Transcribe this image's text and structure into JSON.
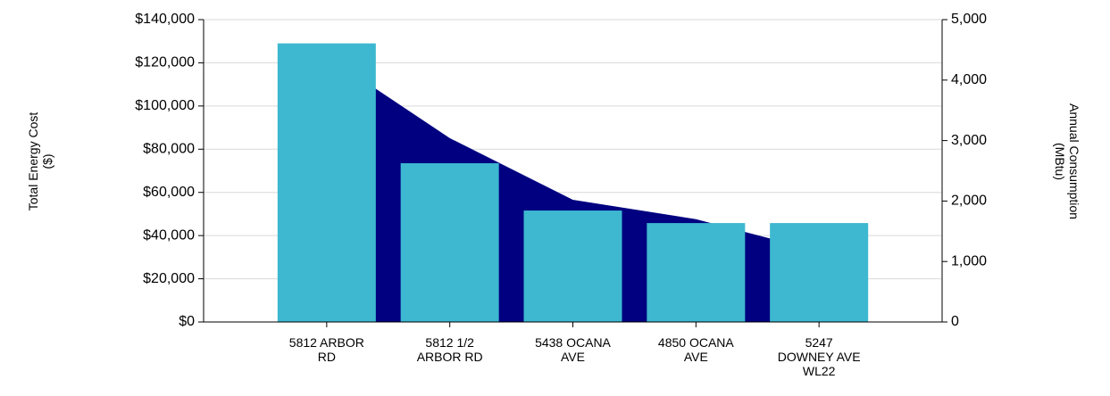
{
  "chart_data": {
    "type": "bar",
    "categories": [
      "5812 ARBOR RD",
      "5812 1/2 ARBOR RD",
      "5438 OCANA AVE",
      "4850 OCANA AVE",
      "5247 DOWNEY AVE WL22"
    ],
    "y_label": "Total Energy Cost ($)",
    "y2_label": "Annual Consumption (MBtu)",
    "series": [
      {
        "name": "Total Energy Cost",
        "type": "bar",
        "color": "#3db8d0",
        "values": [
          129000,
          73500,
          51600,
          45800,
          45800
        ]
      },
      {
        "name": "Annual Consumption",
        "type": "area",
        "axis": "y2",
        "color": "#000080",
        "values": [
          4400,
          3040,
          2020,
          1700,
          1170
        ]
      }
    ],
    "ylim": [
      0,
      140000
    ],
    "yticks": [
      {
        "value": 0,
        "label": "$0"
      },
      {
        "value": 20000,
        "label": "$20,000"
      },
      {
        "value": 40000,
        "label": "$40,000"
      },
      {
        "value": 60000,
        "label": "$60,000"
      },
      {
        "value": 80000,
        "label": "$80,000"
      },
      {
        "value": 100000,
        "label": "$100,000"
      },
      {
        "value": 120000,
        "label": "$120,000"
      },
      {
        "value": 140000,
        "label": "$140,000"
      }
    ],
    "y2lim": [
      0,
      5000
    ],
    "y2ticks": [
      0,
      {
        "value": 1000,
        "label": "1,000"
      },
      {
        "value": 2000,
        "label": "2,000"
      },
      {
        "value": 3000,
        "label": "3,000"
      },
      {
        "value": 4000,
        "label": "4,000"
      },
      {
        "value": 5000,
        "label": "5,000"
      }
    ],
    "grid": true
  }
}
